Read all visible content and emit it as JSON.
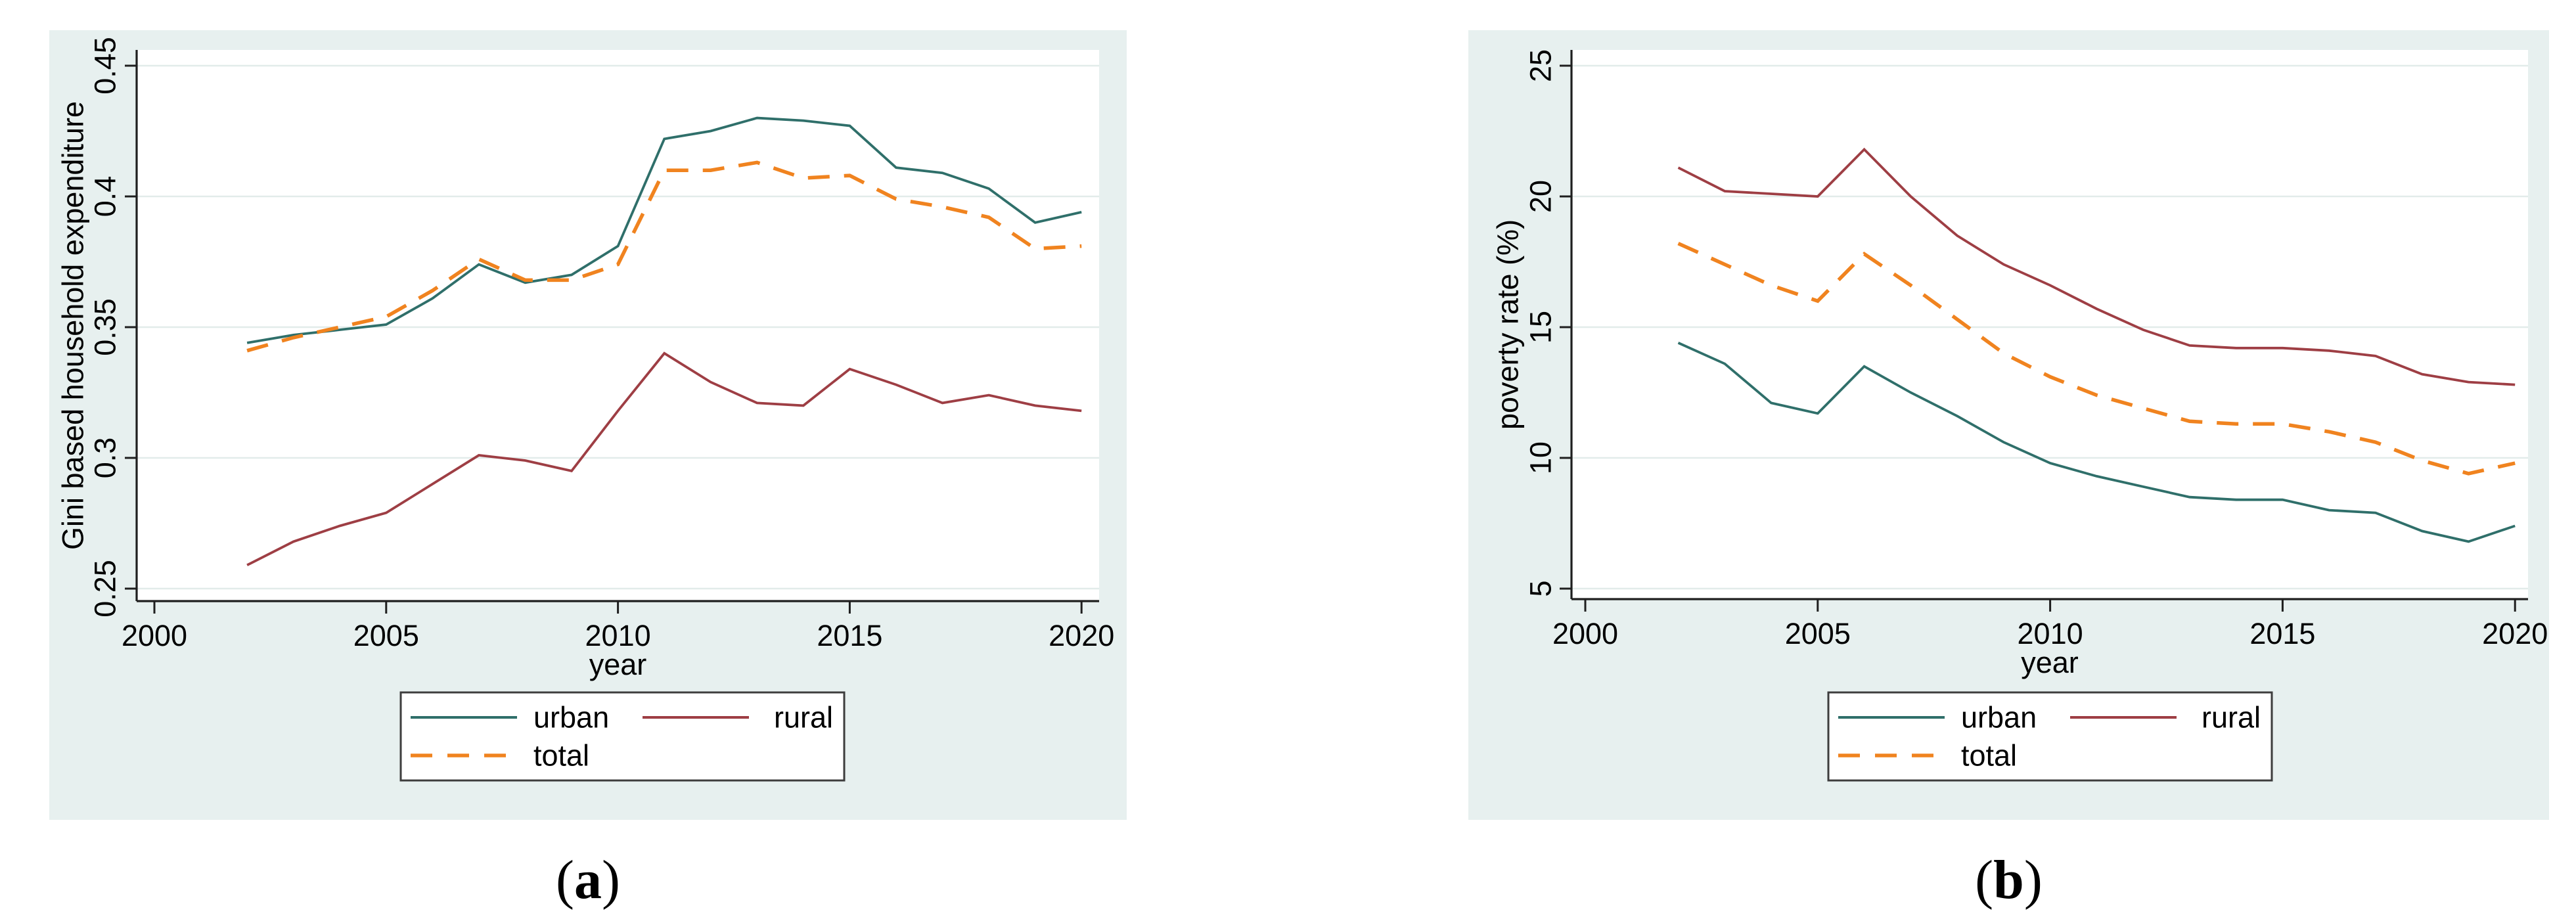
{
  "captions": {
    "a": {
      "open": "(",
      "letter": "a",
      "close": ")"
    },
    "b": {
      "open": "(",
      "letter": "b",
      "close": ")"
    }
  },
  "colors": {
    "page_bg": "#ffffff",
    "panel_bg": "#e7f0ef",
    "plot_bg": "#ffffff",
    "grid": "#e2ecea",
    "axis": "#1f1f1f",
    "text": "#000000",
    "urban": "#2f6f6a",
    "rural": "#9e3e44",
    "total": "#f0831f",
    "legend_bg": "#ffffff",
    "legend_border": "#3d3d3d"
  },
  "legend": {
    "items": [
      {
        "name": "urban",
        "label": "urban",
        "style": "solid"
      },
      {
        "name": "rural",
        "label": "rural",
        "style": "solid"
      },
      {
        "name": "total",
        "label": "total",
        "style": "dashed"
      }
    ]
  },
  "chart_data": [
    {
      "id": "a",
      "type": "line",
      "title": "",
      "xlabel": "year",
      "ylabel": "Gini based household expenditure",
      "x": [
        2002,
        2003,
        2004,
        2005,
        2006,
        2007,
        2008,
        2009,
        2010,
        2011,
        2012,
        2013,
        2014,
        2015,
        2016,
        2017,
        2018,
        2019,
        2020
      ],
      "xticks": [
        2000,
        2005,
        2010,
        2015,
        2020
      ],
      "xtick_labels": [
        "2000",
        "2005",
        "2010",
        "2015",
        "2020"
      ],
      "yticks": [
        0.25,
        0.3,
        0.35,
        0.4,
        0.45
      ],
      "ytick_labels": [
        "0.25",
        "0.3",
        "0.35",
        "0.4",
        "0.45"
      ],
      "xlim": [
        1999.6,
        2020.4
      ],
      "ylim": [
        0.245,
        0.456
      ],
      "grid": "horizontal",
      "legend_position": "bottom",
      "series": [
        {
          "name": "urban",
          "dashed": false,
          "values": [
            0.344,
            0.347,
            0.349,
            0.351,
            0.361,
            0.374,
            0.367,
            0.37,
            0.381,
            0.422,
            0.425,
            0.43,
            0.429,
            0.427,
            0.411,
            0.409,
            0.403,
            0.39,
            0.394
          ]
        },
        {
          "name": "rural",
          "dashed": false,
          "values": [
            0.259,
            0.268,
            0.274,
            0.279,
            0.29,
            0.301,
            0.299,
            0.295,
            0.318,
            0.34,
            0.329,
            0.321,
            0.32,
            0.334,
            0.328,
            0.321,
            0.324,
            0.32,
            0.318
          ]
        },
        {
          "name": "total",
          "dashed": true,
          "values": [
            0.341,
            0.346,
            0.35,
            0.354,
            0.364,
            0.376,
            0.368,
            0.368,
            0.374,
            0.41,
            0.41,
            0.413,
            0.407,
            0.408,
            0.399,
            0.396,
            0.392,
            0.38,
            0.381
          ]
        }
      ]
    },
    {
      "id": "b",
      "type": "line",
      "title": "",
      "xlabel": "year",
      "ylabel": "poverty rate (%)",
      "x": [
        2002,
        2003,
        2004,
        2005,
        2006,
        2007,
        2008,
        2009,
        2010,
        2011,
        2012,
        2013,
        2014,
        2015,
        2016,
        2017,
        2018,
        2019,
        2020
      ],
      "xticks": [
        2000,
        2005,
        2010,
        2015,
        2020
      ],
      "xtick_labels": [
        "2000",
        "2005",
        "2010",
        "2015",
        "2020"
      ],
      "yticks": [
        5,
        10,
        15,
        20,
        25
      ],
      "ytick_labels": [
        "5",
        "10",
        "15",
        "20",
        "25"
      ],
      "xlim": [
        1999.6,
        2020.4
      ],
      "ylim": [
        4.5,
        25.5
      ],
      "grid": "horizontal",
      "legend_position": "bottom",
      "series": [
        {
          "name": "urban",
          "dashed": false,
          "values": [
            14.4,
            13.6,
            12.1,
            11.7,
            13.5,
            12.5,
            11.6,
            10.6,
            9.8,
            9.3,
            8.9,
            8.5,
            8.4,
            8.4,
            8.0,
            7.9,
            7.2,
            6.8,
            7.4
          ]
        },
        {
          "name": "rural",
          "dashed": false,
          "values": [
            21.1,
            20.2,
            20.1,
            20.0,
            21.8,
            20.0,
            18.5,
            17.4,
            16.6,
            15.7,
            14.9,
            14.3,
            14.2,
            14.2,
            14.1,
            13.9,
            13.2,
            12.9,
            12.8
          ]
        },
        {
          "name": "total",
          "dashed": true,
          "values": [
            18.2,
            17.4,
            16.6,
            16.0,
            17.8,
            16.6,
            15.3,
            14.0,
            13.1,
            12.4,
            11.9,
            11.4,
            11.3,
            11.3,
            11.0,
            10.6,
            9.9,
            9.4,
            9.8
          ]
        }
      ]
    }
  ]
}
